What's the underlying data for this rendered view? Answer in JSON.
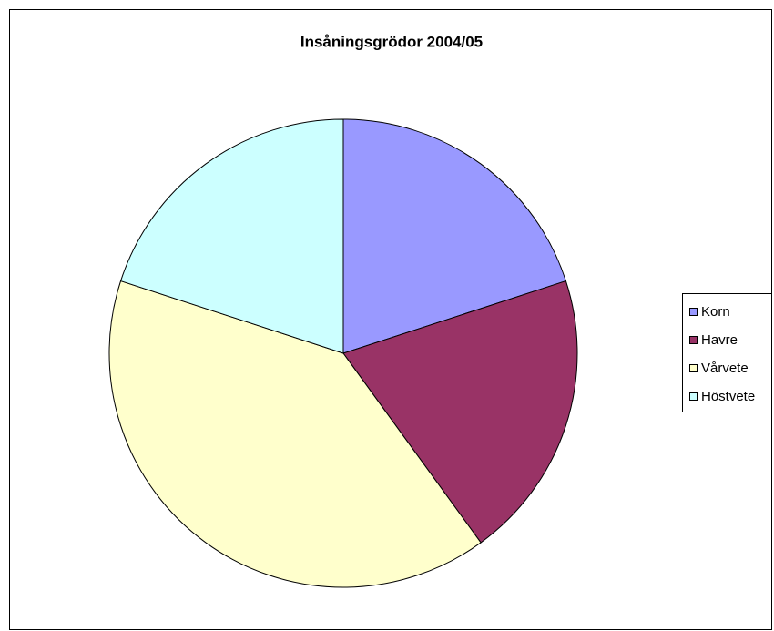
{
  "chart_data": {
    "type": "pie",
    "title": "Insåningsgrödor 2004/05",
    "categories": [
      "Korn",
      "Havre",
      "Vårvete",
      "Höstvete"
    ],
    "values": [
      20,
      20,
      40,
      20
    ],
    "colors": [
      "#9999ff",
      "#993366",
      "#ffffcc",
      "#ccffff"
    ],
    "legend": "right"
  }
}
